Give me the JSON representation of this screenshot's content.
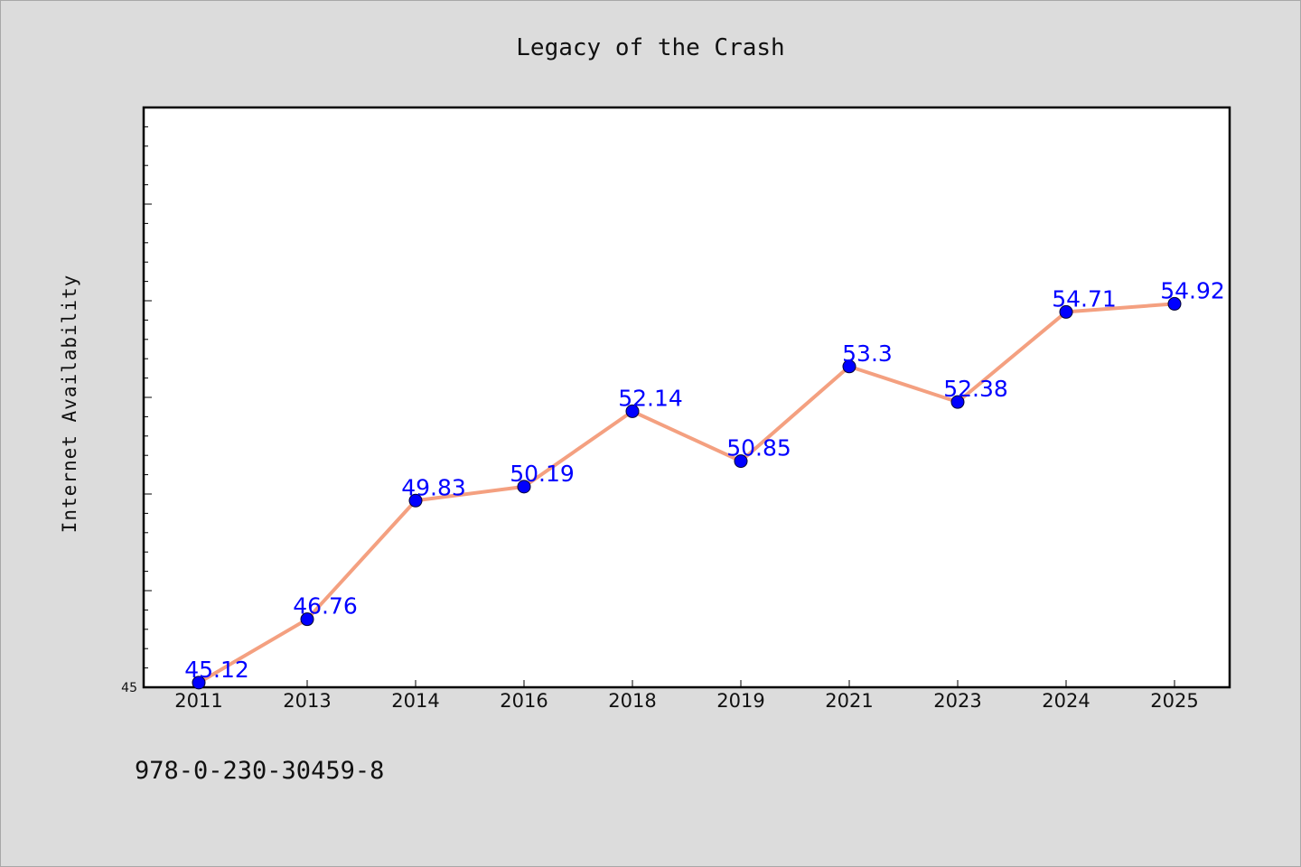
{
  "chart_data": {
    "type": "line",
    "title": "Legacy of the Crash",
    "xlabel": "",
    "ylabel": "Internet Availability",
    "categories": [
      "2011",
      "2013",
      "2014",
      "2016",
      "2018",
      "2019",
      "2021",
      "2023",
      "2024",
      "2025"
    ],
    "series": [
      {
        "values": [
          45.12,
          46.76,
          49.83,
          50.19,
          52.14,
          50.85,
          53.3,
          52.38,
          54.71,
          54.92
        ],
        "data_labels": [
          "45.12",
          "46.76",
          "49.83",
          "50.19",
          "52.14",
          "50.85",
          "53.3",
          "52.38",
          "54.71",
          "54.92"
        ],
        "line_color": "#f4a080",
        "marker_color": "#0000ff"
      }
    ],
    "ylim": [
      45,
      60
    ],
    "yticks_labeled": [
      "45"
    ],
    "grid": false,
    "legend": "none"
  },
  "footer": {
    "isbn": "978-0-230-30459-8"
  },
  "colors": {
    "background": "#dcdcdc",
    "plot_background": "#ffffff",
    "axis": "#000000"
  }
}
